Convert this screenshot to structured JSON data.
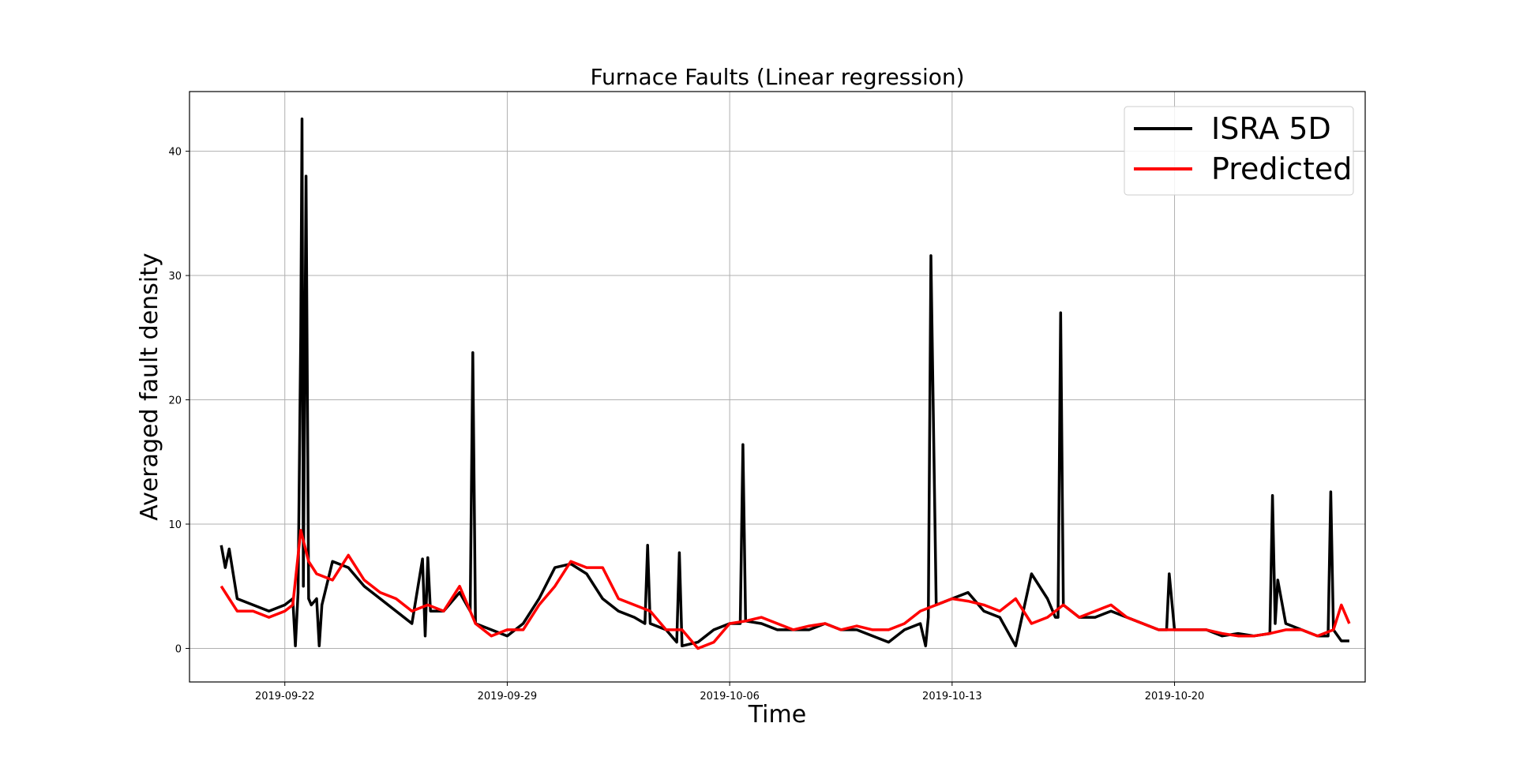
{
  "chart_data": {
    "type": "line",
    "title": "Furnace Faults (Linear regression)",
    "xlabel": "Time",
    "ylabel": "Averaged fault density",
    "x_range": [
      "2019-09-19",
      "2019-10-26"
    ],
    "ylim": [
      -2.7,
      44.8
    ],
    "grid": true,
    "legend_position": "top-right",
    "x_ticks": [
      "2019-09-22",
      "2019-09-29",
      "2019-10-06",
      "2019-10-13",
      "2019-10-20"
    ],
    "y_ticks": [
      0,
      10,
      20,
      30,
      40
    ],
    "series": [
      {
        "name": "ISRA 5D",
        "color": "#000000",
        "x": [
          "2019-09-20T00:00",
          "2019-09-20T03:00",
          "2019-09-20T06:00",
          "2019-09-20T12:00",
          "2019-09-21T00:00",
          "2019-09-21T12:00",
          "2019-09-22T00:00",
          "2019-09-22T06:00",
          "2019-09-22T08:00",
          "2019-09-22T10:00",
          "2019-09-22T12:00",
          "2019-09-22T13:00",
          "2019-09-22T14:00",
          "2019-09-22T16:00",
          "2019-09-22T18:00",
          "2019-09-22T20:00",
          "2019-09-23T00:00",
          "2019-09-23T02:00",
          "2019-09-23T04:00",
          "2019-09-23T12:00",
          "2019-09-24T00:00",
          "2019-09-24T12:00",
          "2019-09-25T00:00",
          "2019-09-25T12:00",
          "2019-09-26T00:00",
          "2019-09-26T08:00",
          "2019-09-26T10:00",
          "2019-09-26T12:00",
          "2019-09-26T14:00",
          "2019-09-27T00:00",
          "2019-09-27T12:00",
          "2019-09-27T20:00",
          "2019-09-27T22:00",
          "2019-09-28T00:00",
          "2019-09-28T12:00",
          "2019-09-29T00:00",
          "2019-09-29T12:00",
          "2019-09-30T00:00",
          "2019-09-30T12:00",
          "2019-10-01T00:00",
          "2019-10-01T12:00",
          "2019-10-02T00:00",
          "2019-10-02T12:00",
          "2019-10-03T00:00",
          "2019-10-03T08:00",
          "2019-10-03T10:00",
          "2019-10-03T12:00",
          "2019-10-04T00:00",
          "2019-10-04T08:00",
          "2019-10-04T10:00",
          "2019-10-04T12:00",
          "2019-10-05T00:00",
          "2019-10-05T12:00",
          "2019-10-06T00:00",
          "2019-10-06T08:00",
          "2019-10-06T10:00",
          "2019-10-06T12:00",
          "2019-10-07T00:00",
          "2019-10-07T12:00",
          "2019-10-08T00:00",
          "2019-10-08T12:00",
          "2019-10-09T00:00",
          "2019-10-09T12:00",
          "2019-10-10T00:00",
          "2019-10-10T12:00",
          "2019-10-11T00:00",
          "2019-10-11T12:00",
          "2019-10-12T00:00",
          "2019-10-12T04:00",
          "2019-10-12T06:00",
          "2019-10-12T08:00",
          "2019-10-12T12:00",
          "2019-10-13T00:00",
          "2019-10-13T12:00",
          "2019-10-14T00:00",
          "2019-10-14T12:00",
          "2019-10-15T00:00",
          "2019-10-15T12:00",
          "2019-10-16T00:00",
          "2019-10-16T06:00",
          "2019-10-16T08:00",
          "2019-10-16T10:00",
          "2019-10-16T12:00",
          "2019-10-17T00:00",
          "2019-10-17T12:00",
          "2019-10-18T00:00",
          "2019-10-18T12:00",
          "2019-10-19T00:00",
          "2019-10-19T12:00",
          "2019-10-19T18:00",
          "2019-10-19T20:00",
          "2019-10-20T00:00",
          "2019-10-20T12:00",
          "2019-10-21T00:00",
          "2019-10-21T12:00",
          "2019-10-22T00:00",
          "2019-10-22T12:00",
          "2019-10-23T00:00",
          "2019-10-23T02:00",
          "2019-10-23T04:00",
          "2019-10-23T06:00",
          "2019-10-23T12:00",
          "2019-10-24T00:00",
          "2019-10-24T12:00",
          "2019-10-24T20:00",
          "2019-10-24T22:00",
          "2019-10-25T00:00",
          "2019-10-25T06:00",
          "2019-10-25T12:00"
        ],
        "y": [
          8.3,
          6.5,
          8.0,
          4.0,
          3.5,
          3.0,
          3.5,
          4.0,
          0.2,
          4.5,
          25.3,
          42.6,
          5.0,
          38.0,
          4.0,
          3.5,
          4.0,
          0.2,
          3.5,
          7.0,
          6.5,
          5.0,
          4.0,
          3.0,
          2.0,
          7.2,
          1.0,
          7.3,
          3.0,
          3.0,
          4.5,
          3.0,
          23.8,
          2.0,
          1.5,
          1.0,
          2.0,
          4.0,
          6.5,
          6.8,
          6.0,
          4.0,
          3.0,
          2.5,
          2.0,
          8.3,
          2.0,
          1.5,
          0.5,
          7.7,
          0.2,
          0.5,
          1.5,
          2.0,
          2.0,
          16.4,
          2.2,
          2.0,
          1.5,
          1.5,
          1.5,
          2.0,
          1.5,
          1.5,
          1.0,
          0.5,
          1.5,
          2.0,
          0.2,
          2.5,
          31.6,
          3.5,
          4.0,
          4.5,
          3.0,
          2.5,
          0.2,
          6.0,
          4.0,
          2.5,
          2.5,
          27.0,
          3.5,
          2.5,
          2.5,
          3.0,
          2.5,
          2.0,
          1.5,
          1.5,
          6.0,
          1.5,
          1.5,
          1.5,
          1.0,
          1.2,
          1.0,
          1.2,
          12.3,
          2.0,
          5.5,
          2.0,
          1.5,
          1.0,
          1.0,
          12.6,
          1.5,
          0.6,
          0.6
        ]
      },
      {
        "name": "Predicted",
        "color": "#ff0000",
        "x": [
          "2019-09-20T00:00",
          "2019-09-20T06:00",
          "2019-09-20T12:00",
          "2019-09-21T00:00",
          "2019-09-21T12:00",
          "2019-09-22T00:00",
          "2019-09-22T06:00",
          "2019-09-22T12:00",
          "2019-09-22T18:00",
          "2019-09-23T00:00",
          "2019-09-23T12:00",
          "2019-09-24T00:00",
          "2019-09-24T12:00",
          "2019-09-25T00:00",
          "2019-09-25T12:00",
          "2019-09-26T00:00",
          "2019-09-26T12:00",
          "2019-09-27T00:00",
          "2019-09-27T12:00",
          "2019-09-28T00:00",
          "2019-09-28T12:00",
          "2019-09-29T00:00",
          "2019-09-29T12:00",
          "2019-09-30T00:00",
          "2019-09-30T12:00",
          "2019-10-01T00:00",
          "2019-10-01T12:00",
          "2019-10-02T00:00",
          "2019-10-02T12:00",
          "2019-10-03T00:00",
          "2019-10-03T12:00",
          "2019-10-04T00:00",
          "2019-10-04T12:00",
          "2019-10-05T00:00",
          "2019-10-05T12:00",
          "2019-10-06T00:00",
          "2019-10-06T12:00",
          "2019-10-07T00:00",
          "2019-10-07T12:00",
          "2019-10-08T00:00",
          "2019-10-08T12:00",
          "2019-10-09T00:00",
          "2019-10-09T12:00",
          "2019-10-10T00:00",
          "2019-10-10T12:00",
          "2019-10-11T00:00",
          "2019-10-11T12:00",
          "2019-10-12T00:00",
          "2019-10-12T12:00",
          "2019-10-13T00:00",
          "2019-10-13T12:00",
          "2019-10-14T00:00",
          "2019-10-14T12:00",
          "2019-10-15T00:00",
          "2019-10-15T12:00",
          "2019-10-16T00:00",
          "2019-10-16T12:00",
          "2019-10-17T00:00",
          "2019-10-17T12:00",
          "2019-10-18T00:00",
          "2019-10-18T12:00",
          "2019-10-19T00:00",
          "2019-10-19T12:00",
          "2019-10-20T00:00",
          "2019-10-20T12:00",
          "2019-10-21T00:00",
          "2019-10-21T12:00",
          "2019-10-22T00:00",
          "2019-10-22T12:00",
          "2019-10-23T00:00",
          "2019-10-23T12:00",
          "2019-10-24T00:00",
          "2019-10-24T12:00",
          "2019-10-25T00:00",
          "2019-10-25T06:00",
          "2019-10-25T12:00"
        ],
        "y": [
          5.0,
          4.0,
          3.0,
          3.0,
          2.5,
          3.0,
          3.5,
          9.5,
          7.0,
          6.0,
          5.5,
          7.5,
          5.5,
          4.5,
          4.0,
          3.0,
          3.5,
          3.0,
          5.0,
          2.0,
          1.0,
          1.5,
          1.5,
          3.5,
          5.0,
          7.0,
          6.5,
          6.5,
          4.0,
          3.5,
          3.0,
          1.5,
          1.5,
          0.0,
          0.5,
          2.0,
          2.2,
          2.5,
          2.0,
          1.5,
          1.8,
          2.0,
          1.5,
          1.8,
          1.5,
          1.5,
          2.0,
          3.0,
          3.5,
          4.0,
          3.8,
          3.5,
          3.0,
          4.0,
          2.0,
          2.5,
          3.5,
          2.5,
          3.0,
          3.5,
          2.5,
          2.0,
          1.5,
          1.5,
          1.5,
          1.5,
          1.2,
          1.0,
          1.0,
          1.2,
          1.5,
          1.5,
          1.0,
          1.5,
          3.5,
          2.0
        ]
      }
    ]
  }
}
